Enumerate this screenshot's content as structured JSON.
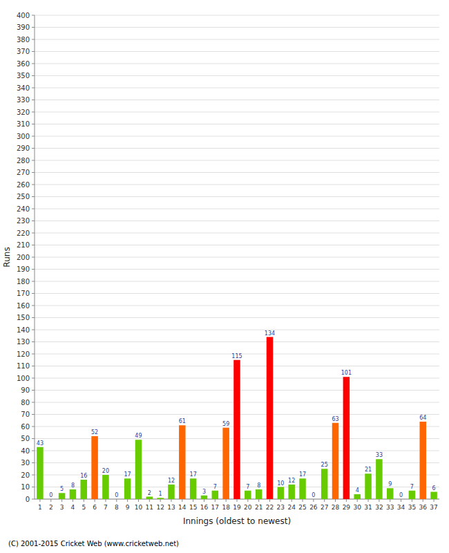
{
  "chart_data": {
    "type": "bar",
    "xlabel": "Innings (oldest to newest)",
    "ylabel": "Runs",
    "footer": "(C) 2001-2015 Cricket Web (www.cricketweb.net)",
    "categories": [
      "1",
      "2",
      "3",
      "4",
      "5",
      "6",
      "7",
      "8",
      "9",
      "10",
      "11",
      "12",
      "13",
      "14",
      "15",
      "16",
      "17",
      "18",
      "19",
      "20",
      "21",
      "22",
      "23",
      "24",
      "25",
      "26",
      "27",
      "28",
      "29",
      "30",
      "31",
      "32",
      "33",
      "34",
      "35",
      "36",
      "37"
    ],
    "values": [
      43,
      0,
      5,
      8,
      16,
      52,
      20,
      0,
      17,
      49,
      2,
      1,
      12,
      61,
      17,
      3,
      7,
      59,
      115,
      7,
      8,
      134,
      10,
      12,
      17,
      0,
      25,
      63,
      101,
      4,
      21,
      33,
      9,
      0,
      7,
      64,
      6
    ],
    "colors": [
      "#66cc00",
      "#66cc00",
      "#66cc00",
      "#66cc00",
      "#66cc00",
      "#ff6600",
      "#66cc00",
      "#66cc00",
      "#66cc00",
      "#66cc00",
      "#66cc00",
      "#66cc00",
      "#66cc00",
      "#ff6600",
      "#66cc00",
      "#66cc00",
      "#66cc00",
      "#ff6600",
      "#ff0000",
      "#66cc00",
      "#66cc00",
      "#ff0000",
      "#66cc00",
      "#66cc00",
      "#66cc00",
      "#66cc00",
      "#66cc00",
      "#ff6600",
      "#ff0000",
      "#66cc00",
      "#66cc00",
      "#66cc00",
      "#66cc00",
      "#66cc00",
      "#66cc00",
      "#ff6600",
      "#66cc00"
    ],
    "ylim": [
      0,
      400
    ],
    "yticks": [
      0,
      10,
      20,
      30,
      40,
      50,
      60,
      70,
      80,
      90,
      100,
      110,
      120,
      130,
      140,
      150,
      160,
      170,
      180,
      190,
      200,
      210,
      220,
      230,
      240,
      250,
      260,
      270,
      280,
      290,
      300,
      310,
      320,
      330,
      340,
      350,
      360,
      370,
      380,
      390,
      400
    ],
    "grid": true,
    "data_labels": true
  }
}
